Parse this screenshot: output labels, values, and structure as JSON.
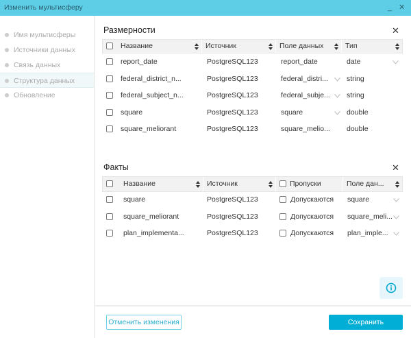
{
  "window": {
    "title": "Изменить мультисферу",
    "minimize": "_",
    "close": "✕"
  },
  "sidebar": {
    "items": [
      {
        "label": "Имя мультисферы"
      },
      {
        "label": "Источники данных"
      },
      {
        "label": "Связь данных"
      },
      {
        "label": "Структура данных",
        "selected": true
      },
      {
        "label": "Обновление"
      }
    ]
  },
  "dimensions": {
    "title": "Размерности",
    "close": "✕",
    "headers": [
      "Название",
      "Источник",
      "Поле данных",
      "Тип"
    ],
    "rows": [
      {
        "name": "report_date",
        "source": "PostgreSQL123",
        "field": "report_date",
        "type": "date"
      },
      {
        "name": "federal_district_n...",
        "source": "PostgreSQL123",
        "field": "federal_distri...",
        "type": "string"
      },
      {
        "name": "federal_subject_n...",
        "source": "PostgreSQL123",
        "field": "federal_subje...",
        "type": "string"
      },
      {
        "name": "square",
        "source": "PostgreSQL123",
        "field": "square",
        "type": "double"
      },
      {
        "name": "square_meliorant",
        "source": "PostgreSQL123",
        "field": "square_melio...",
        "type": "double"
      }
    ]
  },
  "facts": {
    "title": "Факты",
    "close": "✕",
    "headers": [
      "Название",
      "Источник",
      "Пропуски",
      "Поле дан..."
    ],
    "rows": [
      {
        "name": "square",
        "source": "PostgreSQL123",
        "gaps": "Допускаются",
        "field": "square"
      },
      {
        "name": "square_meliorant",
        "source": "PostgreSQL123",
        "gaps": "Допускаются",
        "field": "square_meli..."
      },
      {
        "name": "plan_implementa...",
        "source": "PostgreSQL123",
        "gaps": "Допускаются",
        "field": "plan_imple..."
      }
    ]
  },
  "footer": {
    "cancel": "Отменить изменения",
    "save": "Сохранить"
  },
  "colors": {
    "accent": "#00aed6",
    "titlebar": "#5ecde6"
  }
}
